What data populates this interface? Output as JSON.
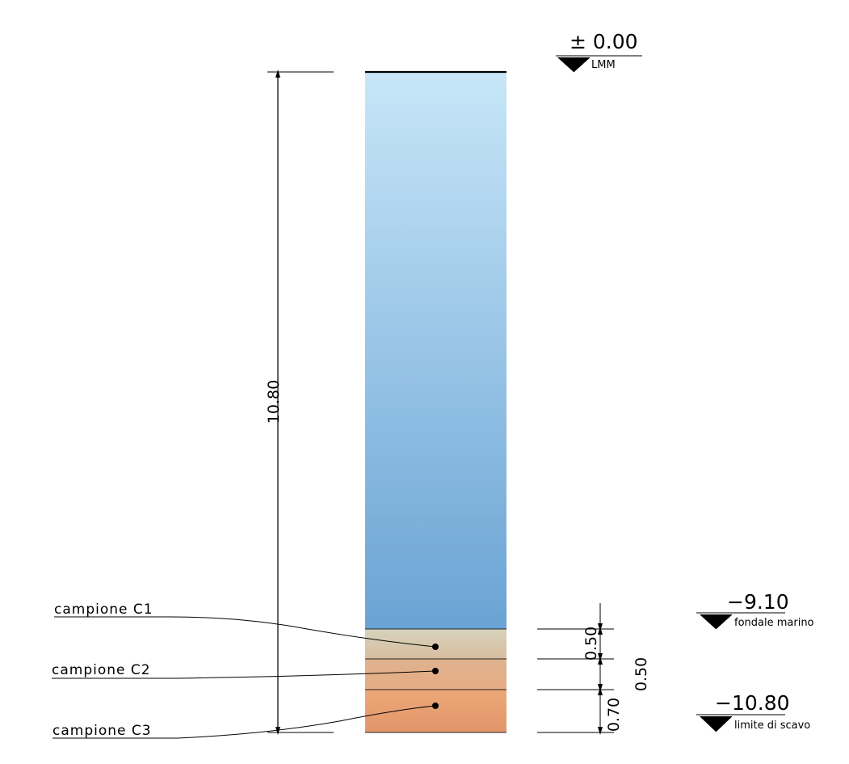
{
  "elevations": {
    "top": {
      "value": "± 0.00",
      "label": "LMM"
    },
    "seabed": {
      "value": "−9.10",
      "label": "fondale  marino"
    },
    "bottom": {
      "value": "−10.80",
      "label": "limite  di  scavo"
    }
  },
  "dimensions": {
    "total": "10.80",
    "layer1": "0.50",
    "layer2": "0.50",
    "layer3": "0.70"
  },
  "samples": [
    {
      "label": "campione  C1"
    },
    {
      "label": "campione  C2"
    },
    {
      "label": "campione  C3"
    }
  ],
  "colors": {
    "water_top": "#c7e6f8",
    "water_bottom": "#6aa3d4",
    "sediment_1": "#d4cbb0",
    "sediment_2": "#e3b48c",
    "sediment_3": "#e39a6c"
  }
}
